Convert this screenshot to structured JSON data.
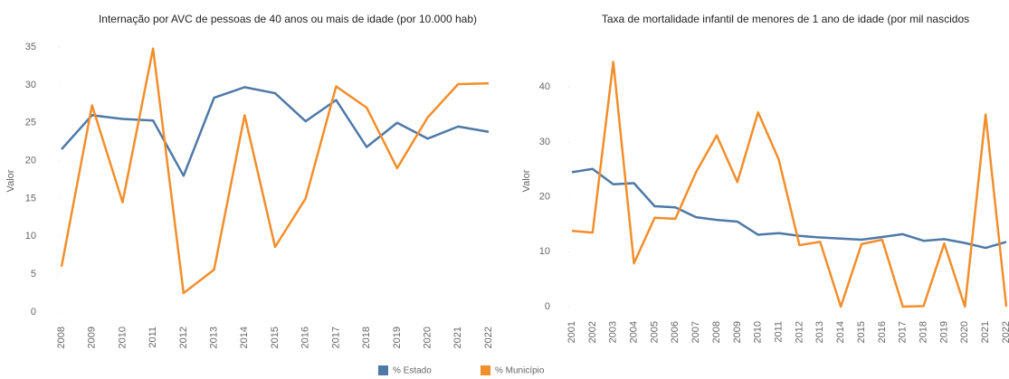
{
  "charts": [
    {
      "type": "line",
      "title": "Internação por AVC de pessoas de 40 anos ou mais de idade (por 10.000 hab)",
      "y_label": "Valor",
      "categories": [
        "2008",
        "2009",
        "2010",
        "2011",
        "2012",
        "2013",
        "2014",
        "2015",
        "2016",
        "2017",
        "2018",
        "2019",
        "2020",
        "2021",
        "2022"
      ],
      "series": [
        {
          "name": "% Estado",
          "color": "#4e79a7",
          "values": [
            21.5,
            26,
            25.5,
            25.3,
            18,
            28.3,
            29.7,
            28.9,
            25.2,
            28,
            21.8,
            25,
            22.9,
            24.5,
            23.8
          ]
        },
        {
          "name": "% Município",
          "color": "#f28e2b",
          "values": [
            6,
            27.3,
            14.5,
            34.8,
            2.5,
            5.6,
            26,
            8.6,
            15,
            29.8,
            27,
            19,
            25.7,
            30.1,
            30.2
          ]
        }
      ],
      "ylim": [
        0,
        35
      ],
      "yticks": [
        0,
        5,
        10,
        15,
        20,
        25,
        30,
        35
      ]
    },
    {
      "type": "line",
      "title": "Taxa de mortalidade infantil de menores de 1 ano de idade (por mil nascidos",
      "y_label": "Valor",
      "categories": [
        "2001",
        "2002",
        "2003",
        "2004",
        "2005",
        "2006",
        "2007",
        "2008",
        "2009",
        "2010",
        "2011",
        "2012",
        "2013",
        "2014",
        "2015",
        "2016",
        "2017",
        "2018",
        "2019",
        "2020",
        "2021",
        "2022"
      ],
      "series": [
        {
          "color": "#4e79a7",
          "values": [
            24.5,
            25.1,
            22.3,
            22.5,
            18.3,
            18.1,
            16.3,
            15.8,
            15.5,
            13.1,
            13.4,
            12.9,
            12.6,
            12.4,
            12.2,
            12.7,
            13.2,
            12,
            12.3,
            11.6,
            10.7,
            11.8
          ]
        },
        {
          "color": "#f28e2b",
          "values": [
            13.8,
            13.5,
            44.6,
            7.9,
            16.2,
            16,
            24.5,
            31.2,
            22.7,
            35.4,
            26.8,
            11.2,
            11.8,
            0,
            11.4,
            12.2,
            0,
            0.1,
            11.5,
            0,
            35,
            0
          ]
        }
      ],
      "ylim": [
        0,
        45
      ],
      "yticks": [
        0,
        10,
        20,
        30,
        40
      ]
    }
  ]
}
